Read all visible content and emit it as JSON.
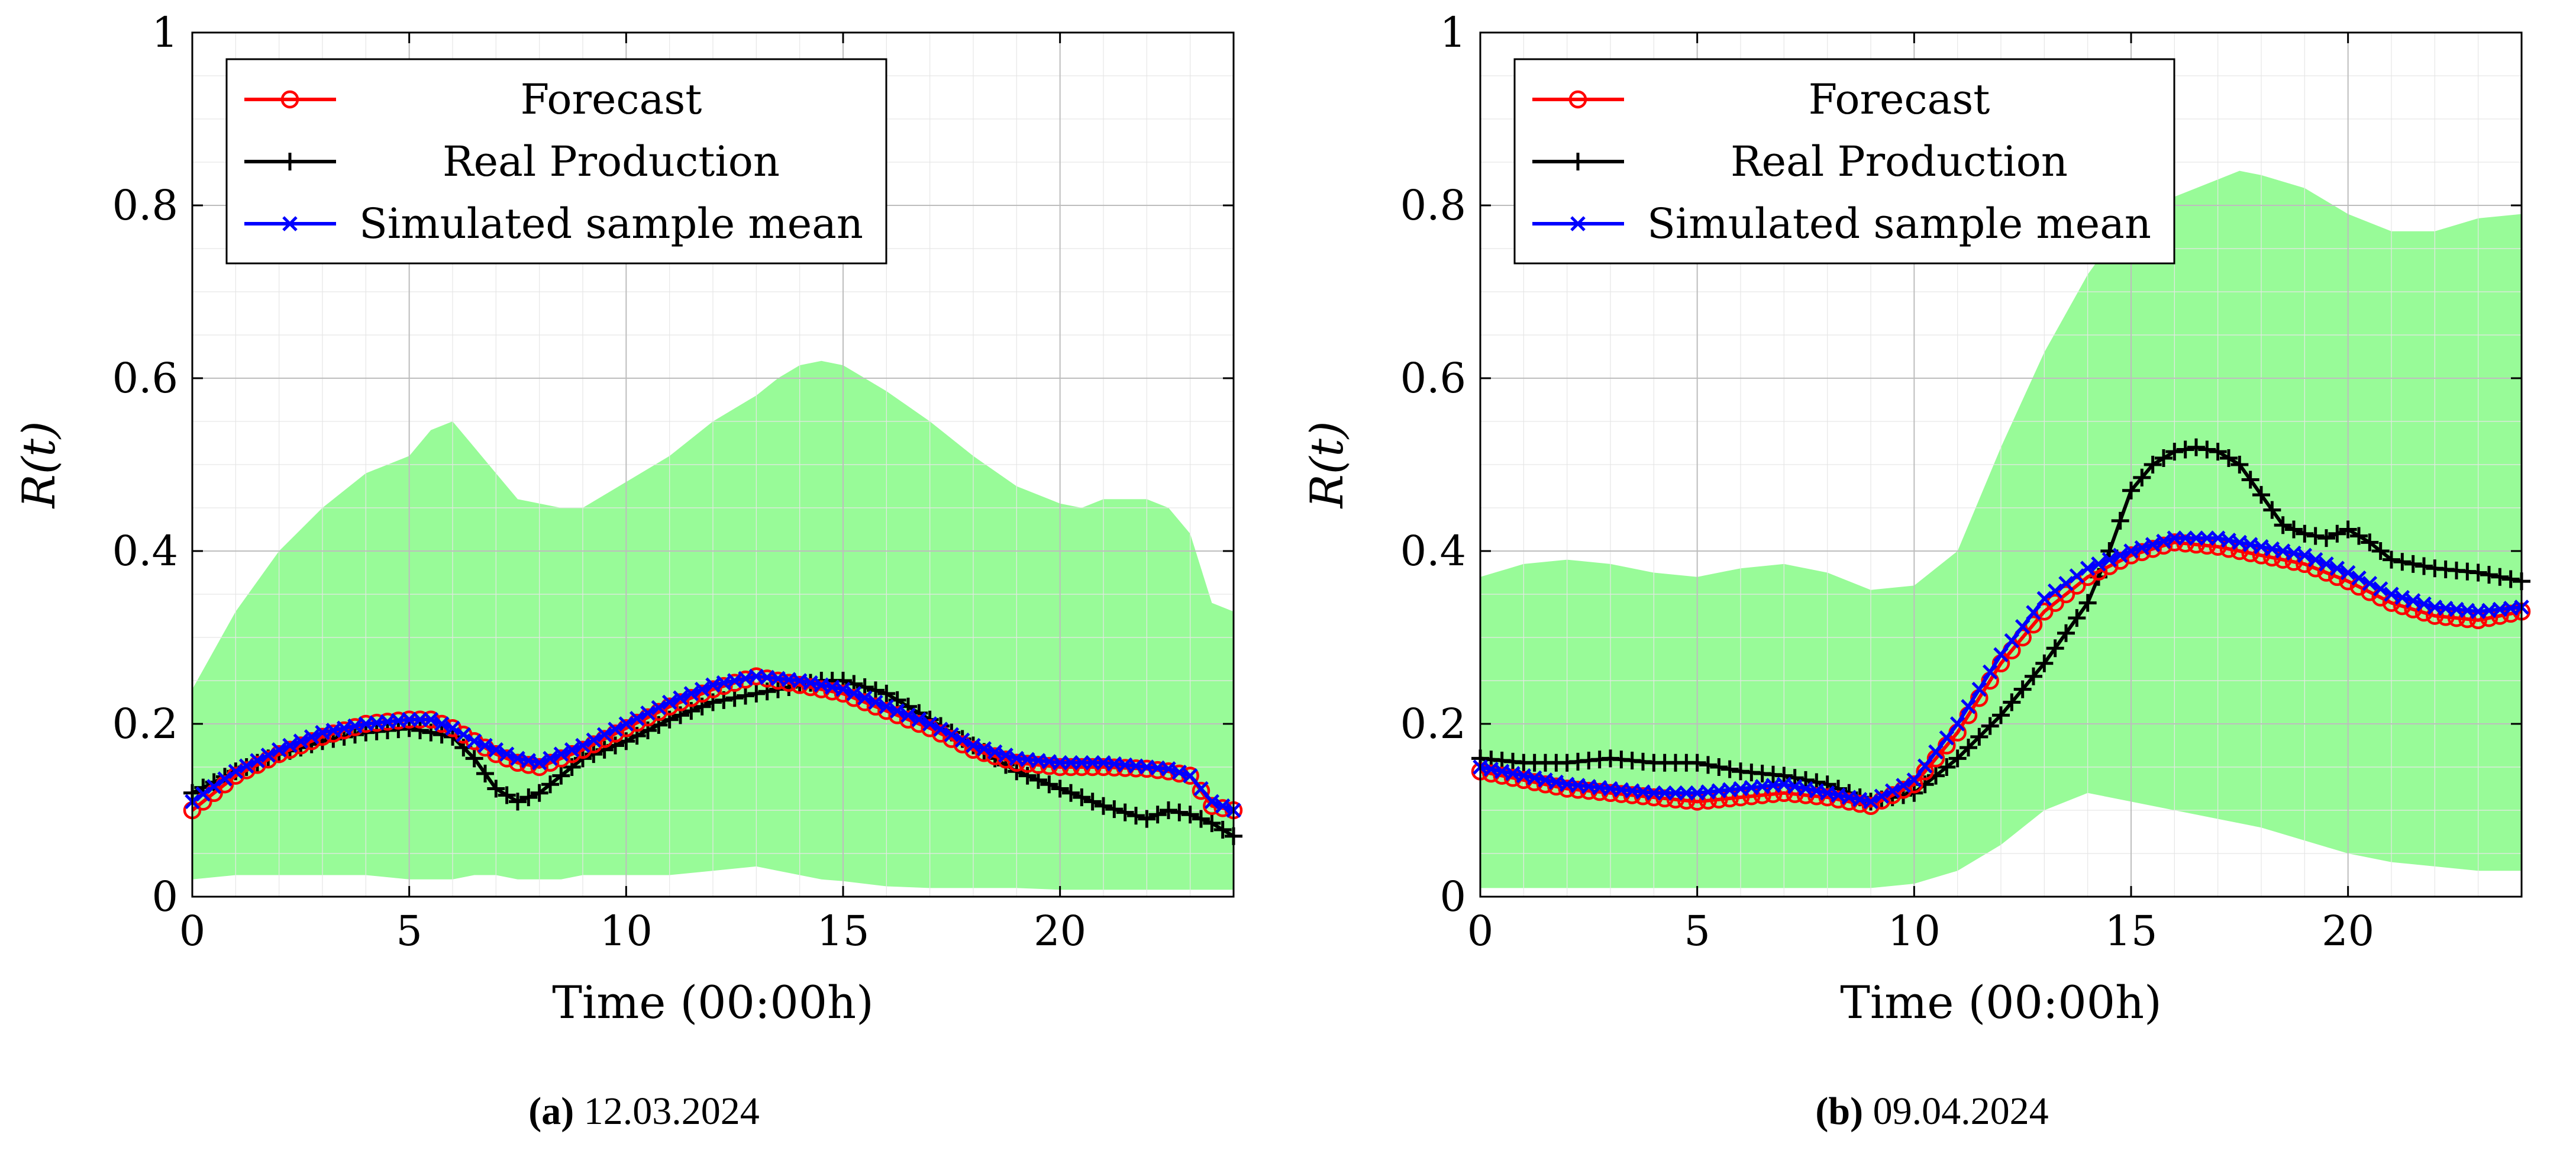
{
  "chart_data": [
    {
      "type": "line",
      "panel_label": "(a)",
      "date_label": "12.03.2024",
      "xlabel": "Time (00:00h)",
      "ylabel": "R(t)",
      "xlim": [
        0,
        24
      ],
      "ylim": [
        0,
        1
      ],
      "x_ticks": [
        0,
        5,
        10,
        15,
        20
      ],
      "x_tick_labels": [
        "0",
        "5",
        "10",
        "15",
        "20"
      ],
      "y_ticks": [
        0,
        0.2,
        0.4,
        0.6,
        0.8,
        1
      ],
      "y_tick_labels": [
        "0",
        "0.2",
        "0.4",
        "0.6",
        "0.8",
        "1"
      ],
      "grid": true,
      "legend_position": "top-left",
      "colors": {
        "forecast": "#ff0000",
        "real": "#000000",
        "mean": "#0000ff",
        "band": "#98fb98"
      },
      "band": {
        "name": "Simulation envelope",
        "x": [
          0,
          1,
          2,
          3,
          4,
          5,
          5.5,
          6,
          6.5,
          7,
          7.5,
          8,
          8.5,
          9,
          10,
          11,
          12,
          13,
          13.5,
          14,
          14.5,
          15,
          15.5,
          16,
          17,
          18,
          19,
          20,
          20.5,
          21,
          22,
          22.5,
          23,
          23.5,
          24
        ],
        "upper": [
          0.24,
          0.33,
          0.4,
          0.45,
          0.49,
          0.51,
          0.54,
          0.55,
          0.52,
          0.49,
          0.46,
          0.455,
          0.45,
          0.45,
          0.48,
          0.51,
          0.55,
          0.58,
          0.6,
          0.615,
          0.62,
          0.615,
          0.6,
          0.585,
          0.55,
          0.51,
          0.475,
          0.455,
          0.45,
          0.46,
          0.46,
          0.45,
          0.42,
          0.34,
          0.33
        ],
        "lower": [
          0.02,
          0.025,
          0.025,
          0.025,
          0.025,
          0.02,
          0.02,
          0.02,
          0.025,
          0.025,
          0.02,
          0.02,
          0.02,
          0.025,
          0.025,
          0.025,
          0.03,
          0.035,
          0.03,
          0.025,
          0.02,
          0.018,
          0.015,
          0.012,
          0.01,
          0.01,
          0.01,
          0.008,
          0.008,
          0.008,
          0.008,
          0.008,
          0.008,
          0.008,
          0.008
        ]
      },
      "series": [
        {
          "name": "Forecast",
          "marker": "circle",
          "x": [
            0,
            1,
            2,
            3,
            4,
            5,
            5.5,
            6,
            6.5,
            7,
            7.5,
            8,
            8.5,
            9,
            10,
            11,
            12,
            13,
            14,
            15,
            16,
            17,
            18,
            19,
            20,
            21,
            22,
            22.5,
            23,
            23.5,
            24
          ],
          "y": [
            0.1,
            0.14,
            0.165,
            0.185,
            0.2,
            0.205,
            0.205,
            0.195,
            0.18,
            0.165,
            0.155,
            0.15,
            0.16,
            0.17,
            0.195,
            0.22,
            0.24,
            0.255,
            0.245,
            0.235,
            0.215,
            0.195,
            0.17,
            0.155,
            0.15,
            0.15,
            0.148,
            0.145,
            0.14,
            0.105,
            0.1
          ]
        },
        {
          "name": "Real Production",
          "marker": "plus",
          "x": [
            0,
            1,
            2,
            3,
            4,
            5,
            6,
            6.5,
            7,
            7.5,
            8,
            8.5,
            9,
            10,
            11,
            12,
            13,
            14,
            14.5,
            15,
            16,
            17,
            18,
            19,
            20,
            21,
            22,
            22.5,
            23,
            23.5,
            24
          ],
          "y": [
            0.12,
            0.145,
            0.165,
            0.18,
            0.19,
            0.195,
            0.185,
            0.16,
            0.125,
            0.11,
            0.12,
            0.14,
            0.16,
            0.18,
            0.205,
            0.225,
            0.235,
            0.245,
            0.25,
            0.25,
            0.235,
            0.205,
            0.175,
            0.145,
            0.125,
            0.105,
            0.09,
            0.1,
            0.095,
            0.085,
            0.07
          ]
        },
        {
          "name": "Simulated sample mean",
          "marker": "cross",
          "x": [
            0,
            1,
            2,
            3,
            4,
            5,
            5.5,
            6,
            6.5,
            7,
            7.5,
            8,
            8.5,
            9,
            10,
            11,
            12,
            13,
            14,
            15,
            16,
            17,
            18,
            19,
            20,
            21,
            22,
            22.5,
            23,
            23.5,
            24
          ],
          "y": [
            0.11,
            0.145,
            0.17,
            0.19,
            0.2,
            0.205,
            0.205,
            0.195,
            0.18,
            0.17,
            0.16,
            0.155,
            0.165,
            0.175,
            0.2,
            0.225,
            0.245,
            0.255,
            0.25,
            0.24,
            0.22,
            0.2,
            0.175,
            0.16,
            0.155,
            0.155,
            0.15,
            0.148,
            0.14,
            0.11,
            0.1
          ]
        }
      ]
    },
    {
      "type": "line",
      "panel_label": "(b)",
      "date_label": "09.04.2024",
      "xlabel": "Time (00:00h)",
      "ylabel": "R(t)",
      "xlim": [
        0,
        24
      ],
      "ylim": [
        0,
        1
      ],
      "x_ticks": [
        0,
        5,
        10,
        15,
        20
      ],
      "x_tick_labels": [
        "0",
        "5",
        "10",
        "15",
        "20"
      ],
      "y_ticks": [
        0,
        0.2,
        0.4,
        0.6,
        0.8,
        1
      ],
      "y_tick_labels": [
        "0",
        "0.2",
        "0.4",
        "0.6",
        "0.8",
        "1"
      ],
      "grid": true,
      "legend_position": "top-left",
      "colors": {
        "forecast": "#ff0000",
        "real": "#000000",
        "mean": "#0000ff",
        "band": "#98fb98"
      },
      "band": {
        "name": "Simulation envelope",
        "x": [
          0,
          1,
          2,
          3,
          4,
          5,
          6,
          7,
          8,
          9,
          10,
          11,
          12,
          13,
          14,
          15,
          16,
          17,
          17.5,
          18,
          19,
          20,
          21,
          22,
          23,
          24
        ],
        "upper": [
          0.37,
          0.385,
          0.39,
          0.385,
          0.375,
          0.37,
          0.38,
          0.385,
          0.375,
          0.355,
          0.36,
          0.4,
          0.52,
          0.63,
          0.72,
          0.79,
          0.81,
          0.83,
          0.84,
          0.835,
          0.82,
          0.79,
          0.77,
          0.77,
          0.785,
          0.79
        ],
        "lower": [
          0.01,
          0.01,
          0.01,
          0.01,
          0.01,
          0.01,
          0.01,
          0.01,
          0.01,
          0.01,
          0.015,
          0.03,
          0.06,
          0.1,
          0.12,
          0.11,
          0.1,
          0.09,
          0.085,
          0.08,
          0.065,
          0.05,
          0.04,
          0.035,
          0.03,
          0.03
        ]
      },
      "series": [
        {
          "name": "Forecast",
          "marker": "circle",
          "x": [
            0,
            1,
            2,
            3,
            4,
            5,
            6,
            7,
            8,
            9,
            10,
            11,
            12,
            13,
            14,
            15,
            16,
            17,
            18,
            19,
            20,
            21,
            22,
            23,
            24
          ],
          "y": [
            0.145,
            0.135,
            0.125,
            0.12,
            0.115,
            0.11,
            0.115,
            0.12,
            0.115,
            0.105,
            0.13,
            0.19,
            0.27,
            0.33,
            0.37,
            0.395,
            0.41,
            0.405,
            0.395,
            0.385,
            0.365,
            0.34,
            0.325,
            0.32,
            0.33
          ]
        },
        {
          "name": "Real Production",
          "marker": "plus",
          "x": [
            0,
            1,
            2,
            3,
            4,
            5,
            6,
            7,
            8,
            9,
            10,
            11,
            12,
            13,
            14,
            14.5,
            15,
            15.5,
            16,
            16.5,
            17,
            17.5,
            18,
            18.5,
            19,
            19.5,
            20,
            20.5,
            21,
            22,
            23,
            24
          ],
          "y": [
            0.16,
            0.155,
            0.155,
            0.16,
            0.155,
            0.155,
            0.145,
            0.14,
            0.13,
            0.11,
            0.12,
            0.16,
            0.21,
            0.27,
            0.34,
            0.4,
            0.47,
            0.5,
            0.515,
            0.52,
            0.515,
            0.5,
            0.465,
            0.43,
            0.42,
            0.415,
            0.425,
            0.41,
            0.39,
            0.38,
            0.375,
            0.365
          ]
        },
        {
          "name": "Simulated sample mean",
          "marker": "cross",
          "x": [
            0,
            1,
            2,
            3,
            4,
            5,
            6,
            7,
            8,
            9,
            10,
            11,
            12,
            13,
            14,
            15,
            16,
            17,
            18,
            19,
            20,
            21,
            22,
            23,
            24
          ],
          "y": [
            0.15,
            0.14,
            0.13,
            0.125,
            0.12,
            0.12,
            0.125,
            0.13,
            0.12,
            0.11,
            0.135,
            0.2,
            0.28,
            0.345,
            0.38,
            0.4,
            0.415,
            0.415,
            0.405,
            0.395,
            0.375,
            0.35,
            0.335,
            0.33,
            0.335
          ]
        }
      ]
    }
  ]
}
